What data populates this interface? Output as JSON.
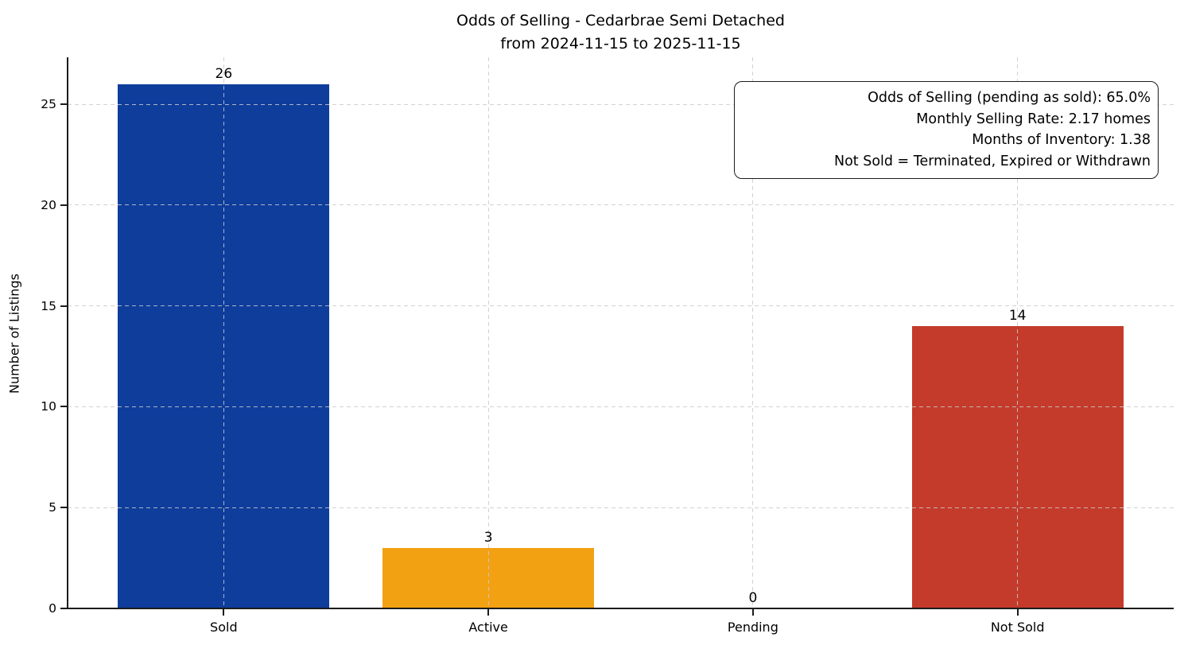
{
  "chart_data": {
    "type": "bar",
    "title": "Odds of Selling - Cedarbrae Semi Detached",
    "subtitle": "from 2024-11-15 to 2025-11-15",
    "categories": [
      "Sold",
      "Active",
      "Pending",
      "Not Sold"
    ],
    "values": [
      26,
      3,
      0,
      14
    ],
    "bar_colors": [
      "#0e3d9c",
      "#f2a113",
      null,
      "#c43b2b"
    ],
    "xlabel": "",
    "ylabel": "Number of Listings",
    "yticks": [
      0,
      5,
      10,
      15,
      20,
      25
    ],
    "ylim": [
      0,
      27.33
    ],
    "grid": "dashed, light gray, horizontal and vertical, drawn over bars",
    "legend": "none",
    "annotation": {
      "lines": [
        "Odds of Selling (pending as sold): 65.0%",
        "Monthly Selling Rate: 2.17 homes",
        "Months of Inventory: 1.38",
        "Not Sold = Terminated, Expired or Withdrawn"
      ]
    },
    "colors": {
      "axis": "#1c1c1c",
      "grid": "#cacaca",
      "text": "#000000",
      "background": "#ffffff"
    }
  }
}
